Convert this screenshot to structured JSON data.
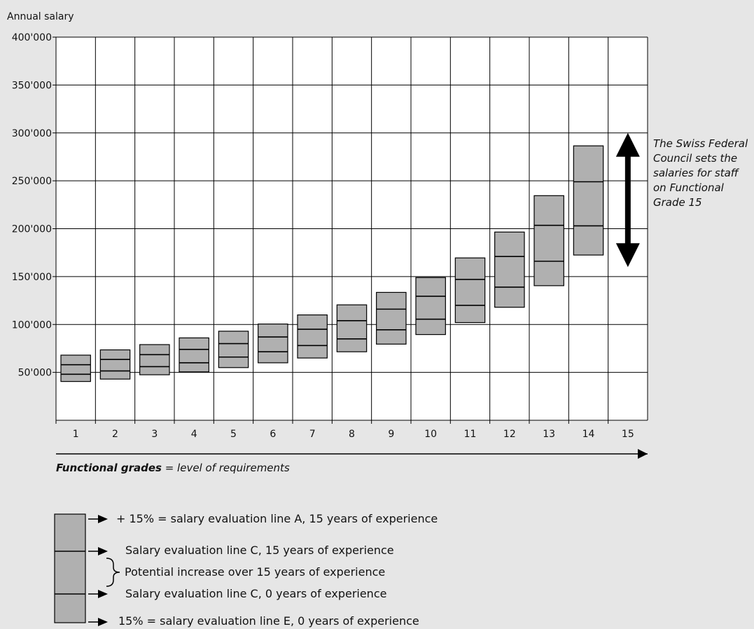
{
  "chart_data": {
    "type": "bar",
    "y_axis_title": "Annual salary",
    "ylim": [
      0,
      400000
    ],
    "yticks": [
      {
        "value": 50000,
        "label": "50'000"
      },
      {
        "value": 100000,
        "label": "100'000"
      },
      {
        "value": 150000,
        "label": "150'000"
      },
      {
        "value": 200000,
        "label": "200'000"
      },
      {
        "value": 250000,
        "label": "250'000"
      },
      {
        "value": 300000,
        "label": "300'000"
      },
      {
        "value": 350000,
        "label": "350'000"
      },
      {
        "value": 400000,
        "label": "400'000"
      }
    ],
    "categories": [
      "1",
      "2",
      "3",
      "4",
      "5",
      "6",
      "7",
      "8",
      "9",
      "10",
      "11",
      "12",
      "13",
      "14",
      "15"
    ],
    "grid": true,
    "box_color": "#b0b0b0",
    "series": [
      {
        "name": "+ 15% = salary evaluation line A, 15 years of experience",
        "values": [
          68000,
          73500,
          79000,
          86000,
          93000,
          100500,
          110000,
          120500,
          133500,
          149000,
          169500,
          196500,
          234500,
          286500,
          null
        ]
      },
      {
        "name": "Salary evaluation line C, 15 years of experience",
        "values": [
          58000,
          63500,
          68500,
          74000,
          80000,
          87000,
          95000,
          104000,
          116000,
          129500,
          147000,
          171000,
          203500,
          249000,
          null
        ]
      },
      {
        "name": "Salary evaluation line C, 0 years of experience",
        "values": [
          48000,
          51500,
          56000,
          60000,
          66000,
          71500,
          78000,
          85000,
          94500,
          105500,
          120000,
          139000,
          166000,
          203000,
          null
        ]
      },
      {
        "name": "15% = salary evaluation line E, 0 years of experience",
        "values": [
          40500,
          43000,
          47500,
          50500,
          55000,
          60000,
          65000,
          71500,
          79500,
          89500,
          102000,
          118000,
          140500,
          172500,
          null
        ]
      }
    ],
    "arrow_range": [
      160000,
      300000
    ],
    "annotation": "The Swiss Federal Council sets the salaries for staff on Functional Grade 15"
  },
  "x_axis_caption_bold": "Functional grades",
  "x_axis_caption_rest": " = level of requirements",
  "legend": {
    "line_a": "+ 15% = salary evaluation line A, 15 years of experience",
    "line_c15": "Salary evaluation line C, 15 years of experience",
    "potential": "Potential increase over 15 years of experience",
    "line_c0": "Salary evaluation line C, 0 years of experience",
    "line_e": "15% = salary evaluation line E, 0 years of experience"
  }
}
